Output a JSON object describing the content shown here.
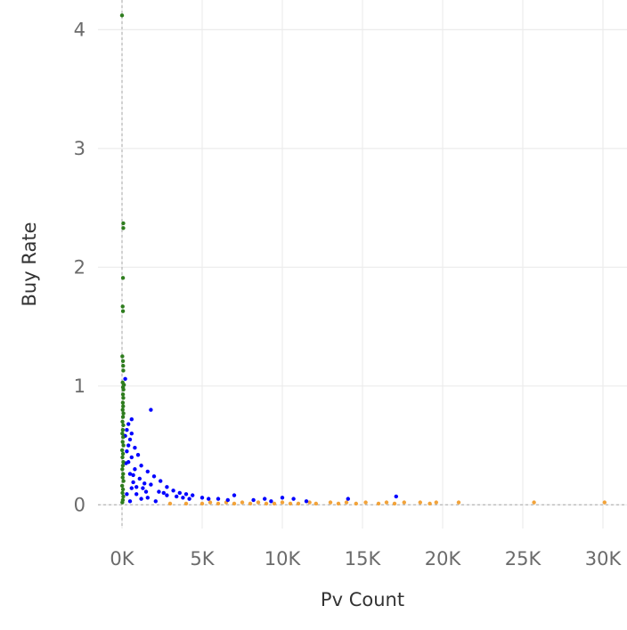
{
  "chart_data": {
    "type": "scatter",
    "title": "",
    "xlabel": "Pv Count",
    "ylabel": "Buy Rate",
    "xlim": [
      -1500,
      31500
    ],
    "ylim": [
      -0.2,
      4.25
    ],
    "x_ticks": [
      0,
      5000,
      10000,
      15000,
      20000,
      25000,
      30000
    ],
    "x_tick_labels": [
      "0K",
      "5K",
      "10K",
      "15K",
      "20K",
      "25K",
      "30K"
    ],
    "y_ticks": [
      0,
      1,
      2,
      3,
      4
    ],
    "y_tick_labels": [
      "0",
      "1",
      "2",
      "3",
      "4"
    ],
    "grid": true,
    "reference_lines": {
      "x": 0,
      "y": 0,
      "style": "dashed"
    },
    "series": [
      {
        "color": "#2e7d1e",
        "points": [
          [
            0,
            4.12
          ],
          [
            80,
            2.37
          ],
          [
            80,
            2.33
          ],
          [
            60,
            1.91
          ],
          [
            40,
            1.67
          ],
          [
            60,
            1.63
          ],
          [
            20,
            1.25
          ],
          [
            60,
            1.21
          ],
          [
            70,
            1.17
          ],
          [
            80,
            1.13
          ],
          [
            40,
            1.03
          ],
          [
            120,
            1.01
          ],
          [
            60,
            0.99
          ],
          [
            90,
            0.97
          ],
          [
            60,
            0.93
          ],
          [
            80,
            0.9
          ],
          [
            50,
            0.86
          ],
          [
            70,
            0.83
          ],
          [
            40,
            0.8
          ],
          [
            90,
            0.77
          ],
          [
            60,
            0.74
          ],
          [
            30,
            0.7
          ],
          [
            80,
            0.67
          ],
          [
            50,
            0.63
          ],
          [
            20,
            0.6
          ],
          [
            70,
            0.57
          ],
          [
            40,
            0.53
          ],
          [
            90,
            0.5
          ],
          [
            10,
            0.46
          ],
          [
            60,
            0.43
          ],
          [
            30,
            0.4
          ],
          [
            80,
            0.36
          ],
          [
            50,
            0.33
          ],
          [
            20,
            0.3
          ],
          [
            70,
            0.26
          ],
          [
            40,
            0.23
          ],
          [
            90,
            0.2
          ],
          [
            10,
            0.16
          ],
          [
            60,
            0.13
          ],
          [
            30,
            0.1
          ],
          [
            80,
            0.07
          ],
          [
            50,
            0.04
          ],
          [
            20,
            0.02
          ]
        ]
      },
      {
        "color": "#0000ff",
        "points": [
          [
            200,
            1.06
          ],
          [
            1800,
            0.8
          ],
          [
            600,
            0.72
          ],
          [
            400,
            0.68
          ],
          [
            300,
            0.63
          ],
          [
            600,
            0.6
          ],
          [
            200,
            0.58
          ],
          [
            500,
            0.55
          ],
          [
            400,
            0.5
          ],
          [
            800,
            0.48
          ],
          [
            300,
            0.45
          ],
          [
            1000,
            0.42
          ],
          [
            600,
            0.4
          ],
          [
            400,
            0.36
          ],
          [
            1200,
            0.33
          ],
          [
            800,
            0.3
          ],
          [
            1600,
            0.28
          ],
          [
            500,
            0.26
          ],
          [
            2000,
            0.24
          ],
          [
            1100,
            0.22
          ],
          [
            2400,
            0.2
          ],
          [
            700,
            0.19
          ],
          [
            1800,
            0.17
          ],
          [
            2800,
            0.15
          ],
          [
            1300,
            0.14
          ],
          [
            3200,
            0.12
          ],
          [
            2300,
            0.11
          ],
          [
            3600,
            0.1
          ],
          [
            900,
            0.09
          ],
          [
            4000,
            0.09
          ],
          [
            2800,
            0.08
          ],
          [
            4400,
            0.08
          ],
          [
            3400,
            0.07
          ],
          [
            5000,
            0.06
          ],
          [
            1600,
            0.06
          ],
          [
            5400,
            0.05
          ],
          [
            4200,
            0.05
          ],
          [
            6000,
            0.05
          ],
          [
            6600,
            0.04
          ],
          [
            7000,
            0.08
          ],
          [
            8200,
            0.04
          ],
          [
            8900,
            0.05
          ],
          [
            9300,
            0.03
          ],
          [
            10000,
            0.06
          ],
          [
            10700,
            0.05
          ],
          [
            11500,
            0.03
          ],
          [
            14100,
            0.05
          ],
          [
            17100,
            0.07
          ],
          [
            600,
            0.14
          ],
          [
            1500,
            0.11
          ],
          [
            2600,
            0.1
          ],
          [
            3800,
            0.06
          ],
          [
            500,
            0.03
          ],
          [
            1200,
            0.05
          ],
          [
            2100,
            0.03
          ],
          [
            300,
            0.09
          ],
          [
            700,
            0.25
          ],
          [
            1400,
            0.18
          ],
          [
            250,
            0.35
          ],
          [
            900,
            0.15
          ]
        ]
      },
      {
        "color": "#f2a33a",
        "points": [
          [
            6000,
            0.01
          ],
          [
            6500,
            0.02
          ],
          [
            7000,
            0.01
          ],
          [
            7500,
            0.02
          ],
          [
            8000,
            0.01
          ],
          [
            8500,
            0.02
          ],
          [
            9000,
            0.01
          ],
          [
            9500,
            0.01
          ],
          [
            10000,
            0.02
          ],
          [
            10500,
            0.01
          ],
          [
            11000,
            0.01
          ],
          [
            11700,
            0.02
          ],
          [
            12100,
            0.01
          ],
          [
            13000,
            0.02
          ],
          [
            13500,
            0.01
          ],
          [
            14000,
            0.02
          ],
          [
            14600,
            0.01
          ],
          [
            15200,
            0.02
          ],
          [
            16000,
            0.01
          ],
          [
            16500,
            0.02
          ],
          [
            17000,
            0.01
          ],
          [
            17600,
            0.02
          ],
          [
            18600,
            0.02
          ],
          [
            19200,
            0.01
          ],
          [
            19600,
            0.02
          ],
          [
            21000,
            0.02
          ],
          [
            25700,
            0.02
          ],
          [
            30100,
            0.02
          ],
          [
            3000,
            0.01
          ],
          [
            4000,
            0.01
          ],
          [
            5000,
            0.01
          ],
          [
            5500,
            0.02
          ]
        ]
      }
    ]
  }
}
